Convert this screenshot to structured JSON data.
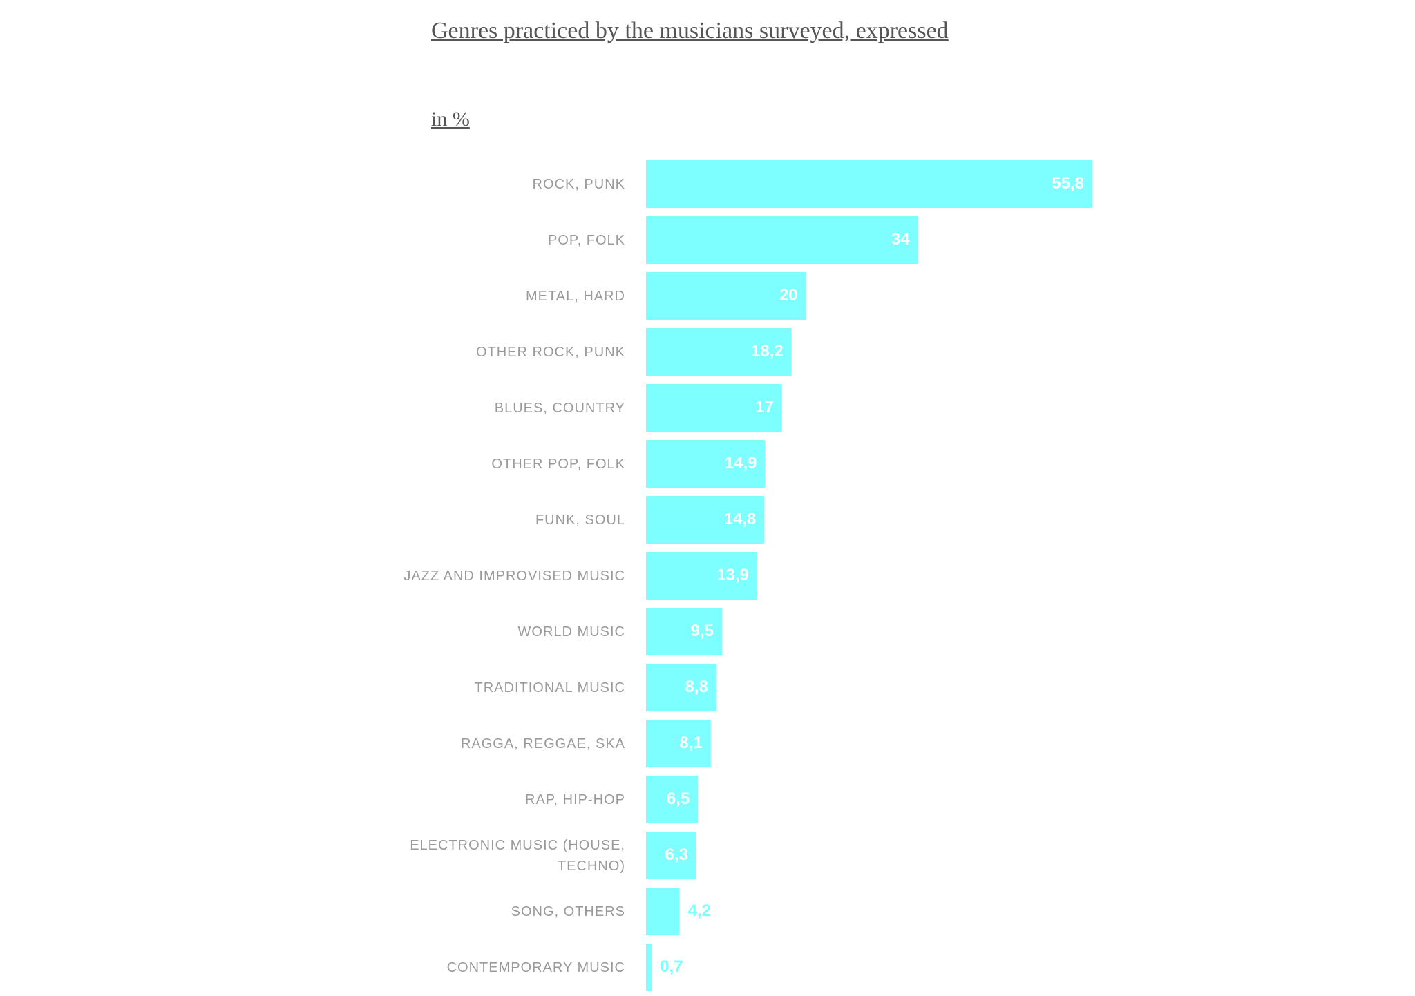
{
  "chart_data": {
    "type": "bar",
    "orientation": "horizontal",
    "title": "Genres practiced by the musicians surveyed, expressed",
    "subtitle": "in %",
    "categories": [
      "ROCK, PUNK",
      "POP, FOLK",
      "METAL, HARD",
      "OTHER ROCK, PUNK",
      "BLUES, COUNTRY",
      "OTHER POP, FOLK",
      "FUNK, SOUL",
      "JAZZ AND IMPROVISED MUSIC",
      "WORLD MUSIC",
      "TRADITIONAL MUSIC",
      "RAGGA, REGGAE, SKA",
      "RAP, HIP-HOP",
      "ELECTRONIC MUSIC (HOUSE, TECHNO)",
      "SONG, OTHERS",
      "CONTEMPORARY MUSIC"
    ],
    "values": [
      55.8,
      34,
      20,
      18.2,
      17,
      14.9,
      14.8,
      13.9,
      9.5,
      8.8,
      8.1,
      6.5,
      6.3,
      4.2,
      0.7
    ],
    "value_labels": [
      "55,8",
      "34",
      "20",
      "18,2",
      "17",
      "14,9",
      "14,8",
      "13,9",
      "9,5",
      "8,8",
      "8,1",
      "6,5",
      "6,3",
      "4,2",
      "0,7"
    ],
    "color": "#7dffff"
  }
}
